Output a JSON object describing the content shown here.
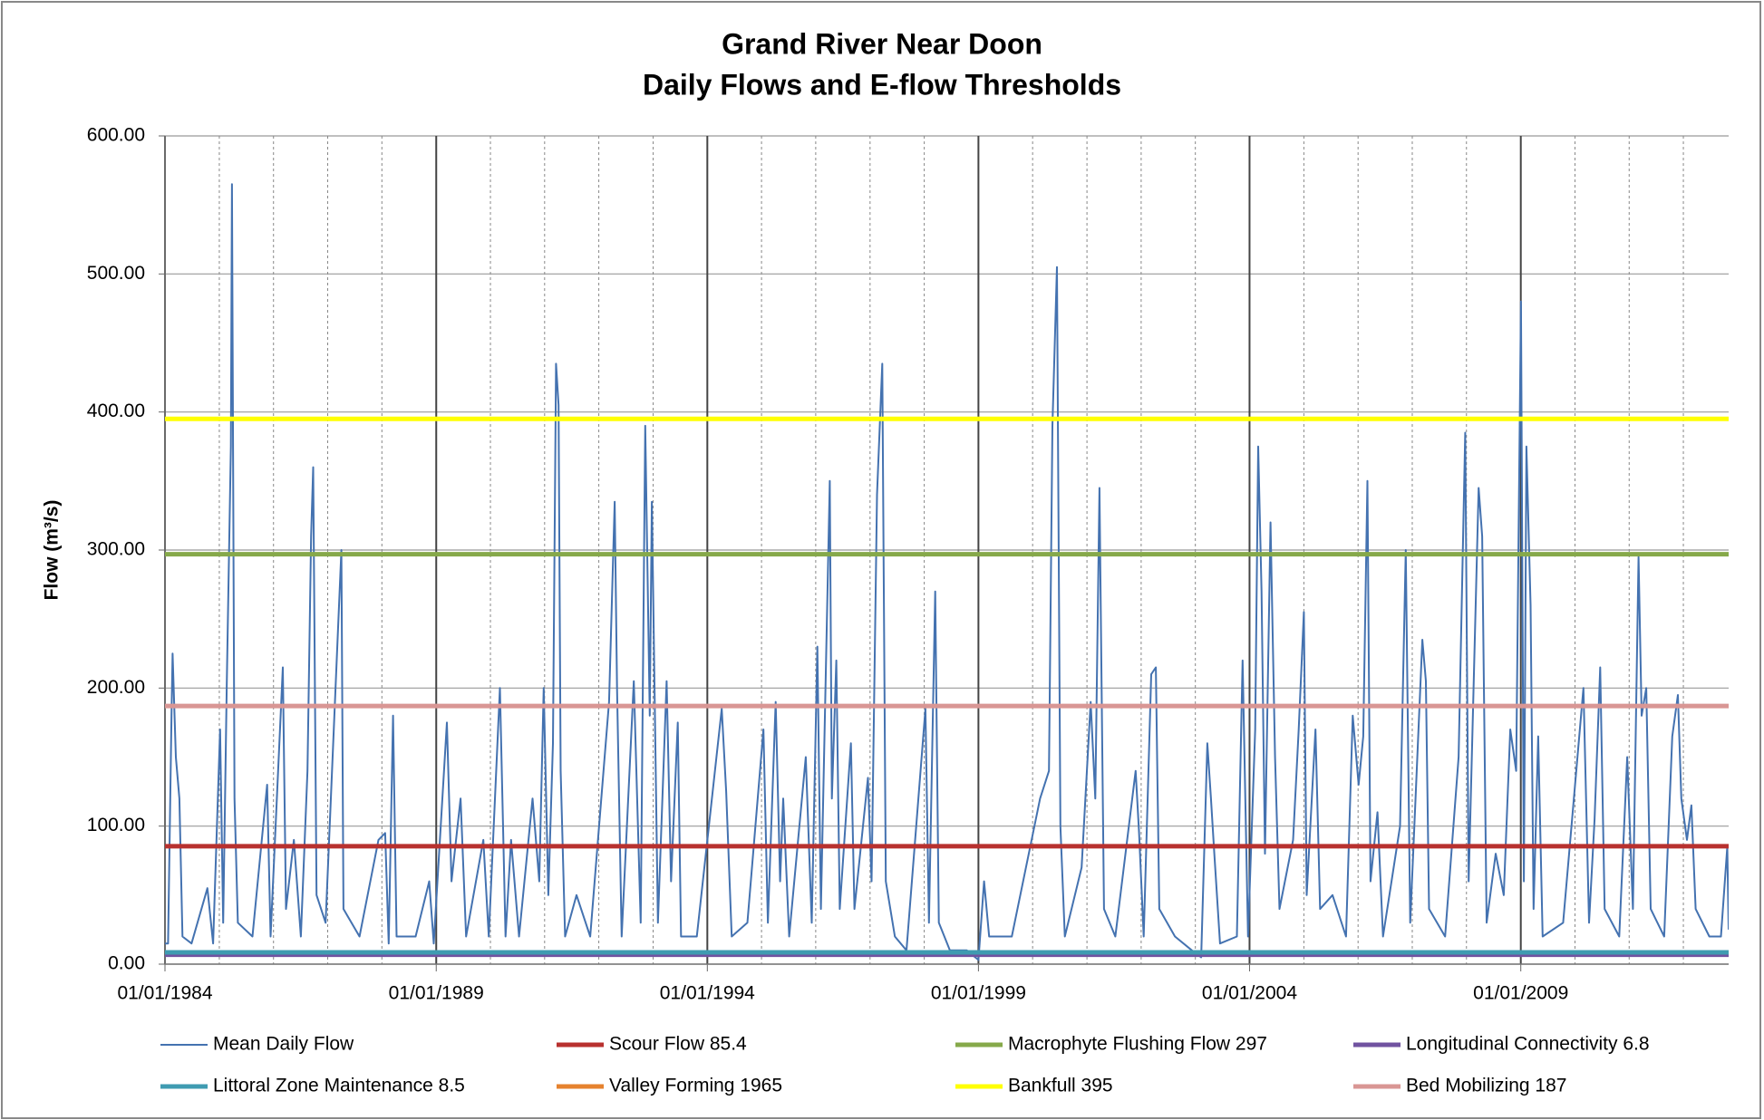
{
  "chart_data": {
    "type": "line",
    "title": [
      "Grand River Near Doon",
      "Daily Flows and E-flow Thresholds"
    ],
    "y_label": "Flow (m³/s)",
    "xlim": [
      "01/01/1984",
      "01/11/2012"
    ],
    "xticks": [
      "01/01/1984",
      "01/01/1989",
      "01/01/1994",
      "01/01/1999",
      "01/01/2004",
      "01/01/2009"
    ],
    "xminor": [
      "01/01/1985",
      "01/01/1986",
      "01/01/1987",
      "01/01/1988",
      "01/01/1990",
      "01/01/1991",
      "01/01/1992",
      "01/01/1993",
      "01/01/1995",
      "01/01/1996",
      "01/01/1997",
      "01/01/1998",
      "01/01/2000",
      "01/01/2001",
      "01/01/2002",
      "01/01/2003",
      "01/01/2005",
      "01/01/2006",
      "01/01/2007",
      "01/01/2008",
      "01/01/2010",
      "01/01/2011",
      "01/01/2012"
    ],
    "ylim": [
      0,
      600
    ],
    "yticks": [
      {
        "value": 0,
        "label": "0.00"
      },
      {
        "value": 100,
        "label": "100.00"
      },
      {
        "value": 200,
        "label": "200.00"
      },
      {
        "value": 300,
        "label": "300.00"
      },
      {
        "value": 400,
        "label": "400.00"
      },
      {
        "value": 500,
        "label": "500.00"
      },
      {
        "value": 600,
        "label": "600.00"
      }
    ],
    "grid": true,
    "x": [
      "01/01/1984",
      "22/01/1984",
      "14/02/1984",
      "21/02/1984",
      "14/03/1984",
      "07/04/1984",
      "28/04/1984",
      "28/06/1984",
      "13/10/1984",
      "20/11/1984",
      "06/01/1985",
      "27/01/1985",
      "20/02/1985",
      "20/03/1985",
      "27/03/1985",
      "13/04/1985",
      "06/05/1985",
      "12/08/1985",
      "19/11/1985",
      "12/12/1985",
      "05/03/1986",
      "26/03/1986",
      "18/05/1986",
      "04/07/1986",
      "18/08/1986",
      "11/09/1986",
      "25/09/1986",
      "18/10/1986",
      "18/12/1986",
      "03/04/1987",
      "17/04/1987",
      "03/08/1987",
      "09/12/1987",
      "23/01/1988",
      "16/02/1988",
      "16/03/1988",
      "09/04/1988",
      "15/08/1988",
      "15/11/1988",
      "15/12/1988",
      "14/03/1989",
      "14/04/1989",
      "14/06/1989",
      "21/07/1989",
      "14/11/1989",
      "21/12/1989",
      "06/03/1990",
      "13/04/1990",
      "20/05/1990",
      "13/07/1990",
      "12/10/1990",
      "26/11/1990",
      "26/12/1990",
      "26/01/1991",
      "26/02/1991",
      "19/03/1991",
      "05/04/1991",
      "19/04/1991",
      "19/05/1991",
      "04/08/1991",
      "04/11/1991",
      "10/03/1992",
      "17/04/1992",
      "03/05/1992",
      "03/06/1992",
      "24/08/1992",
      "09/10/1992",
      "09/11/1992",
      "09/12/1992",
      "23/12/1992",
      "02/02/1993",
      "02/04/1993",
      "02/05/1993",
      "16/06/1993",
      "08/07/1993",
      "22/10/1993",
      "08/04/1994",
      "08/05/1994",
      "14/06/1994",
      "28/09/1994",
      "14/01/1995",
      "13/02/1995",
      "06/04/1995",
      "06/05/1995",
      "27/05/1995",
      "06/07/1995",
      "26/10/1995",
      "05/12/1995",
      "12/01/1996",
      "05/02/1996",
      "05/04/1996",
      "19/04/1996",
      "19/05/1996",
      "11/06/1996",
      "25/08/1996",
      "18/09/1996",
      "18/12/1996",
      "11/01/1997",
      "17/02/1997",
      "24/03/1997",
      "17/04/1997",
      "17/06/1997",
      "03/09/1997",
      "09/01/1998",
      "02/02/1998",
      "16/03/1998",
      "09/04/1998",
      "23/06/1998",
      "15/10/1998",
      "01/01/1999",
      "08/02/1999",
      "14/03/1999",
      "14/08/1999",
      "20/02/2000",
      "20/04/2000",
      "13/05/2000",
      "13/06/2000",
      "06/07/2000",
      "05/08/2000",
      "26/11/2000",
      "26/01/2001",
      "26/02/2001",
      "26/03/2001",
      "26/04/2001",
      "11/07/2001",
      "25/11/2001",
      "18/12/2001",
      "18/01/2002",
      "10/03/2002",
      "10/04/2002",
      "03/05/2002",
      "17/08/2002",
      "09/12/2002",
      "09/02/2003",
      "23/03/2003",
      "16/04/2003",
      "09/05/2003",
      "16/06/2003",
      "08/10/2003",
      "15/11/2003",
      "22/12/2003",
      "08/02/2004",
      "28/02/2004",
      "22/03/2004",
      "14/04/2004",
      "21/05/2004",
      "21/06/2004",
      "21/07/2004",
      "20/10/2004",
      "27/11/2004",
      "01/01/2005",
      "20/01/2005",
      "20/03/2005",
      "20/04/2005",
      "13/07/2005",
      "12/10/2005",
      "26/11/2005",
      "05/01/2006",
      "05/02/2006",
      "05/03/2006",
      "26/03/2006",
      "12/05/2006",
      "18/06/2006",
      "11/10/2006",
      "18/11/2006",
      "18/12/2006",
      "10/03/2007",
      "03/04/2007",
      "24/04/2007",
      "10/08/2007",
      "09/11/2007",
      "24/12/2007",
      "16/01/2008",
      "23/03/2008",
      "16/04/2008",
      "16/05/2008",
      "16/07/2008",
      "08/09/2008",
      "22/10/2008",
      "01/12/2008",
      "02/01/2009",
      "22/01/2009",
      "08/02/2009",
      "08/03/2009",
      "28/03/2009",
      "28/04/2009",
      "28/05/2009",
      "13/10/2009",
      "27/02/2010",
      "06/04/2010",
      "13/05/2010",
      "20/06/2010",
      "20/07/2010",
      "26/10/2010",
      "19/12/2010",
      "26/01/2011",
      "05/03/2011",
      "26/03/2011",
      "26/04/2011",
      "26/05/2011",
      "25/08/2011",
      "18/10/2011",
      "25/11/2011",
      "18/12/2011",
      "25/01/2012",
      "24/02/2012",
      "24/03/2012",
      "24/06/2012",
      "10/09/2012",
      "23/10/2012",
      "01/11/2012"
    ],
    "series": [
      {
        "name": "Mean Daily Flow",
        "color": "#4472b0",
        "values": [
          15,
          15,
          180,
          225,
          150,
          120,
          20,
          15,
          55,
          15,
          170,
          30,
          200,
          375,
          565,
          120,
          30,
          20,
          130,
          20,
          215,
          40,
          90,
          20,
          140,
          310,
          360,
          50,
          30,
          300,
          40,
          20,
          90,
          95,
          15,
          180,
          20,
          20,
          60,
          15,
          175,
          60,
          120,
          20,
          90,
          20,
          200,
          20,
          90,
          20,
          120,
          60,
          200,
          50,
          160,
          435,
          405,
          140,
          20,
          50,
          20,
          190,
          335,
          200,
          20,
          205,
          30,
          390,
          180,
          335,
          30,
          205,
          60,
          175,
          20,
          20,
          185,
          125,
          20,
          30,
          170,
          30,
          190,
          60,
          120,
          20,
          150,
          30,
          230,
          40,
          350,
          120,
          220,
          40,
          160,
          40,
          135,
          60,
          340,
          435,
          60,
          20,
          10,
          185,
          30,
          270,
          30,
          10,
          10,
          3,
          60,
          20,
          20,
          120,
          140,
          390,
          505,
          100,
          20,
          70,
          190,
          120,
          345,
          40,
          20,
          140,
          95,
          20,
          210,
          215,
          40,
          20,
          10,
          5,
          160,
          120,
          80,
          15,
          20,
          220,
          20,
          170,
          375,
          270,
          80,
          320,
          150,
          40,
          90,
          170,
          255,
          50,
          170,
          40,
          50,
          20,
          180,
          130,
          165,
          350,
          60,
          110,
          20,
          100,
          300,
          30,
          235,
          205,
          40,
          20,
          150,
          385,
          60,
          345,
          310,
          30,
          80,
          50,
          170,
          140,
          480,
          60,
          375,
          260,
          40,
          165,
          20,
          30,
          200,
          30,
          105,
          215,
          40,
          20,
          150,
          40,
          295,
          180,
          200,
          40,
          20,
          165,
          195,
          120,
          90,
          115,
          40,
          20,
          20,
          85,
          25
        ]
      }
    ],
    "thresholds": [
      {
        "name": "Scour Flow 85.4",
        "value": 85.4,
        "color": "#b8312f"
      },
      {
        "name": "Macrophyte Flushing Flow 297",
        "value": 297,
        "color": "#86a94a"
      },
      {
        "name": "Longitudinal Connectivity 6.8",
        "value": 6.8,
        "color": "#7153a0"
      },
      {
        "name": "Littoral Zone Maintenance 8.5",
        "value": 8.5,
        "color": "#3f9bb1"
      },
      {
        "name": "Valley Forming 1965",
        "value": 1965,
        "color": "#e6822e"
      },
      {
        "name": "Bankfull 395",
        "value": 395,
        "color": "#ffff00"
      },
      {
        "name": "Bed Mobilizing 187",
        "value": 187,
        "color": "#d99694"
      }
    ]
  }
}
